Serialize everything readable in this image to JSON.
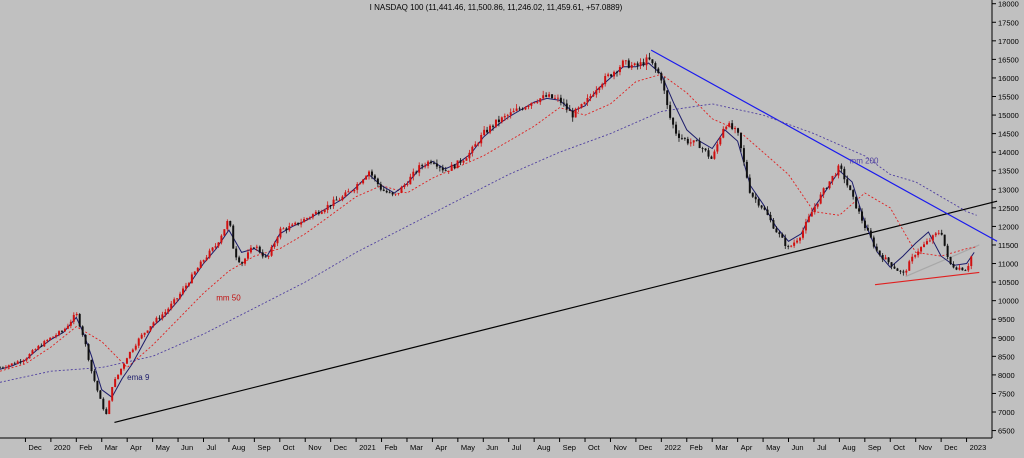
{
  "chart_data": {
    "type": "line",
    "title": "I NASDAQ 100 (11,441.46, 11,500.86, 11,246.02, 11,459.61, +57.0889)",
    "y_ticks": [
      6500,
      7000,
      7500,
      8000,
      8500,
      9000,
      9500,
      10000,
      10500,
      11000,
      11500,
      12000,
      12500,
      13000,
      13500,
      14000,
      14500,
      15000,
      15500,
      16000,
      16500,
      17000,
      17500,
      18000
    ],
    "ylim": [
      6300,
      18100
    ],
    "xlim": [
      0,
      39
    ],
    "x_ticks": [
      {
        "i": 1,
        "label": "Dec"
      },
      {
        "i": 2,
        "label": "2020"
      },
      {
        "i": 3,
        "label": "Feb"
      },
      {
        "i": 4,
        "label": "Mar"
      },
      {
        "i": 5,
        "label": "Apr"
      },
      {
        "i": 6,
        "label": "May"
      },
      {
        "i": 7,
        "label": "Jun"
      },
      {
        "i": 8,
        "label": "Jul"
      },
      {
        "i": 9,
        "label": "Aug"
      },
      {
        "i": 10,
        "label": "Sep"
      },
      {
        "i": 11,
        "label": "Oct"
      },
      {
        "i": 12,
        "label": "Nov"
      },
      {
        "i": 13,
        "label": "Dec"
      },
      {
        "i": 14,
        "label": "2021"
      },
      {
        "i": 15,
        "label": "Feb"
      },
      {
        "i": 16,
        "label": "Mar"
      },
      {
        "i": 17,
        "label": "Apr"
      },
      {
        "i": 18,
        "label": "May"
      },
      {
        "i": 19,
        "label": "Jun"
      },
      {
        "i": 20,
        "label": "Jul"
      },
      {
        "i": 21,
        "label": "Aug"
      },
      {
        "i": 22,
        "label": "Sep"
      },
      {
        "i": 23,
        "label": "Oct"
      },
      {
        "i": 24,
        "label": "Nov"
      },
      {
        "i": 25,
        "label": "Dec"
      },
      {
        "i": 26,
        "label": "2022"
      },
      {
        "i": 27,
        "label": "Feb"
      },
      {
        "i": 28,
        "label": "Mar"
      },
      {
        "i": 29,
        "label": "Apr"
      },
      {
        "i": 30,
        "label": "May"
      },
      {
        "i": 31,
        "label": "Jun"
      },
      {
        "i": 32,
        "label": "Jul"
      },
      {
        "i": 33,
        "label": "Aug"
      },
      {
        "i": 34,
        "label": "Sep"
      },
      {
        "i": 35,
        "label": "Oct"
      },
      {
        "i": 36,
        "label": "Nov"
      },
      {
        "i": 37,
        "label": "Dec"
      },
      {
        "i": 38,
        "label": "2023"
      }
    ],
    "price_series": {
      "name": "I NASDAQ 100",
      "x": [
        0,
        0.5,
        1,
        1.5,
        2,
        2.5,
        3,
        3.3,
        3.6,
        4,
        4.2,
        4.4,
        4.6,
        5,
        5.5,
        6,
        6.5,
        7,
        7.5,
        8,
        8.5,
        9,
        9.2,
        9.5,
        10,
        10.5,
        11,
        11.5,
        12,
        12.5,
        13,
        13.5,
        14,
        14.5,
        15,
        15.5,
        16,
        16.5,
        17,
        17.5,
        18,
        18.5,
        19,
        19.5,
        20,
        20.5,
        21,
        21.5,
        22,
        22.5,
        23,
        23.5,
        24,
        24.5,
        25,
        25.5,
        26,
        26.3,
        26.6,
        27,
        27.5,
        28,
        28.5,
        29,
        29.5,
        30,
        30.5,
        31,
        31.5,
        32,
        32.5,
        33,
        33.2,
        33.5,
        34,
        34.5,
        35,
        35.5,
        36,
        36.5,
        37,
        37.3,
        37.6,
        38,
        38.3
      ],
      "y": [
        8200,
        8300,
        8450,
        8750,
        9000,
        9200,
        9650,
        9000,
        8100,
        7200,
        6900,
        7700,
        7950,
        8500,
        9000,
        9400,
        9700,
        10100,
        10600,
        11100,
        11500,
        12200,
        11300,
        11000,
        11500,
        11100,
        11900,
        12000,
        12200,
        12400,
        12600,
        12800,
        13100,
        13500,
        13000,
        12800,
        13200,
        13600,
        13800,
        13500,
        13700,
        14000,
        14500,
        14800,
        15000,
        15200,
        15400,
        15500,
        15400,
        15000,
        15300,
        15800,
        16100,
        16400,
        16300,
        16500,
        16000,
        15000,
        14500,
        14300,
        14200,
        13800,
        14800,
        14500,
        12900,
        12500,
        11900,
        11400,
        11800,
        12500,
        13100,
        13600,
        13300,
        12800,
        12000,
        11300,
        11000,
        10700,
        11300,
        11600,
        11900,
        11000,
        10900,
        10850,
        11400
      ]
    },
    "series": [
      {
        "name": "mm 50",
        "color": "#e02020",
        "style": "dashed",
        "x": [
          0,
          1,
          2,
          3,
          4,
          5,
          6,
          7,
          8,
          9,
          10,
          11,
          12,
          13,
          14,
          15,
          16,
          17,
          18,
          19,
          20,
          21,
          22,
          23,
          24,
          25,
          26,
          27,
          28,
          29,
          30,
          31,
          32,
          33,
          34,
          35,
          36,
          37,
          38,
          38.4
        ],
        "y": [
          8100,
          8300,
          8750,
          9300,
          8900,
          8200,
          8800,
          9500,
          10200,
          10800,
          11200,
          11400,
          11800,
          12300,
          12800,
          13100,
          12900,
          13300,
          13600,
          13900,
          14300,
          14700,
          15200,
          15000,
          15300,
          15900,
          16100,
          15600,
          14900,
          14600,
          14000,
          13400,
          12400,
          12300,
          12900,
          12500,
          11300,
          11200,
          11400,
          11450
        ]
      },
      {
        "name": "mm 200",
        "color": "#5040a0",
        "style": "dashed",
        "x": [
          0,
          2,
          4,
          6,
          8,
          10,
          12,
          14,
          16,
          18,
          20,
          22,
          24,
          26,
          28,
          30,
          32,
          33,
          34,
          35,
          36,
          37,
          38,
          38.4
        ],
        "y": [
          7800,
          8100,
          8200,
          8500,
          9100,
          9800,
          10500,
          11300,
          12000,
          12700,
          13400,
          14000,
          14500,
          15100,
          15300,
          15000,
          14500,
          14200,
          13900,
          13400,
          13200,
          12800,
          12400,
          12300
        ]
      },
      {
        "name": "ema 9",
        "color": "#1c1c6a",
        "style": "solid",
        "x": [
          0,
          0.5,
          1,
          1.5,
          2,
          2.5,
          3,
          3.3,
          3.6,
          4,
          4.4,
          4.8,
          5.2,
          5.6,
          6,
          6.5,
          7,
          7.5,
          8,
          8.5,
          9,
          9.5,
          10,
          10.5,
          11,
          11.5,
          12,
          12.5,
          13,
          13.5,
          14,
          14.5,
          15,
          15.5,
          16,
          16.5,
          17,
          17.5,
          18,
          18.5,
          19,
          19.5,
          20,
          20.5,
          21,
          21.5,
          22,
          22.5,
          23,
          23.5,
          24,
          24.5,
          25,
          25.5,
          26,
          26.5,
          27,
          27.5,
          28,
          28.5,
          29,
          29.5,
          30,
          30.5,
          31,
          31.5,
          32,
          32.5,
          33,
          33.5,
          34,
          34.5,
          35,
          35.5,
          36,
          36.5,
          37,
          37.5,
          38,
          38.3
        ],
        "y": [
          8150,
          8250,
          8400,
          8700,
          8950,
          9150,
          9550,
          9100,
          8500,
          7600,
          7400,
          7900,
          8300,
          8800,
          9300,
          9600,
          10000,
          10500,
          11000,
          11400,
          11900,
          11300,
          11400,
          11200,
          11800,
          12000,
          12150,
          12350,
          12550,
          12750,
          13050,
          13400,
          13100,
          12900,
          13150,
          13550,
          13750,
          13550,
          13700,
          13950,
          14400,
          14700,
          14950,
          15150,
          15350,
          15450,
          15400,
          15100,
          15250,
          15700,
          16000,
          16300,
          16300,
          16400,
          16100,
          15300,
          14600,
          14300,
          14100,
          14600,
          14300,
          13100,
          12600,
          12000,
          11600,
          11800,
          12500,
          13000,
          13500,
          13200,
          12100,
          11300,
          10900,
          11200,
          11550,
          11850,
          11200,
          10950,
          11000,
          11300
        ]
      }
    ],
    "trendlines": [
      {
        "name": "long-term support",
        "color": "#000000",
        "x": [
          4.5,
          39.2
        ],
        "y": [
          6720,
          12680
        ]
      },
      {
        "name": "descending resistance",
        "color": "#1a1aee",
        "x": [
          25.6,
          39.2
        ],
        "y": [
          16750,
          11600
        ]
      },
      {
        "name": "rising support",
        "color": "#e02020",
        "x": [
          34.4,
          38.5
        ],
        "y": [
          10430,
          10760
        ]
      },
      {
        "name": "gray support",
        "color": "#a8a8a8",
        "x": [
          35.6,
          38.5
        ],
        "y": [
          10650,
          11500
        ]
      }
    ],
    "annotations": [
      {
        "text": "mm 50",
        "x": 8.5,
        "y": 10000,
        "color": "#c01010"
      },
      {
        "text": "mm 200",
        "x": 33.4,
        "y": 13700,
        "color": "#5040a0"
      },
      {
        "text": "ema 9",
        "x": 5.0,
        "y": 7860,
        "color": "#1c1c6a"
      }
    ]
  }
}
